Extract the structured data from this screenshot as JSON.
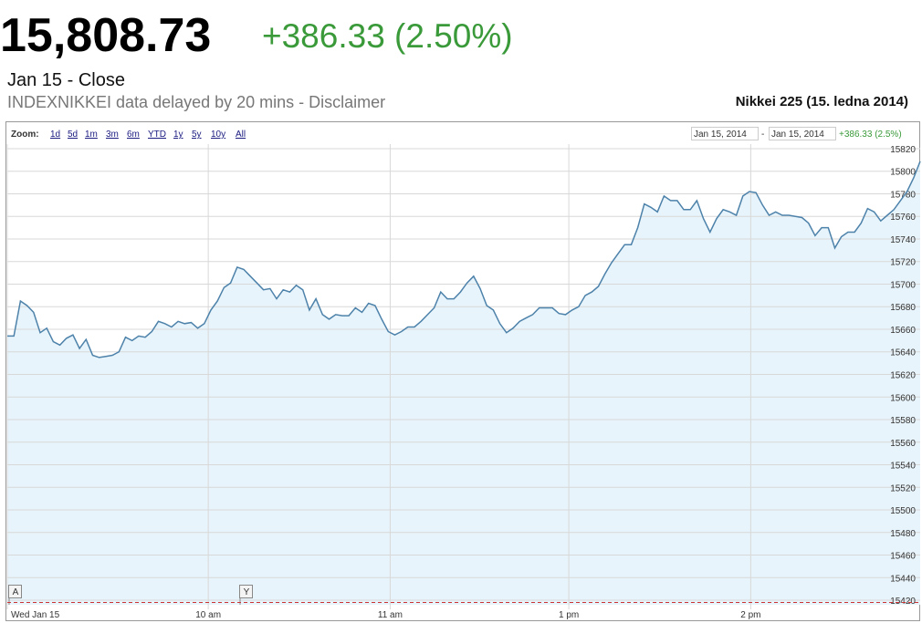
{
  "header": {
    "price": "15,808.73",
    "change": "+386.33 (2.50%)",
    "date": "Jan 15 - Close",
    "note": "INDEXNIKKEI data delayed by 20 mins - Disclaimer",
    "chart_title": "Nikkei 225 (15. ledna 2014)"
  },
  "toolbar": {
    "zoom_label": "Zoom:",
    "zoom_options": [
      "1d",
      "5d",
      "1m",
      "3m",
      "6m",
      "YTD",
      "1y",
      "5y",
      "10y",
      "All"
    ],
    "range_from": "Jan 15, 2014",
    "range_sep": "-",
    "range_to": "Jan 15, 2014",
    "range_change": "+386.33 (2.5%)"
  },
  "chart_data": {
    "type": "line",
    "color": "#4d82aa",
    "fill": "#e8f4fb",
    "values": [
      15654,
      15654,
      15685,
      15681,
      15675,
      15657,
      15661,
      15649,
      15646,
      15652,
      15655,
      15643,
      15651,
      15637,
      15635,
      15636,
      15637,
      15640,
      15653,
      15650,
      15654,
      15653,
      15658,
      15667,
      15665,
      15662,
      15667,
      15665,
      15666,
      15661,
      15665,
      15677,
      15685,
      15697,
      15701,
      15715,
      15713,
      15707,
      15701,
      15695,
      15696,
      15687,
      15695,
      15693,
      15699,
      15695,
      15677,
      15687,
      15673,
      15669,
      15673,
      15672,
      15672,
      15679,
      15675,
      15683,
      15681,
      15669,
      15658,
      15655,
      15658,
      15662,
      15662,
      15667,
      15673,
      15679,
      15693,
      15687,
      15687,
      15693,
      15701,
      15707,
      15696,
      15681,
      15677,
      15665,
      15657,
      15661,
      15667,
      15670,
      15673,
      15679,
      15679,
      15679,
      15674,
      15673,
      15677,
      15680,
      15690,
      15693,
      15698,
      15709,
      15719,
      15727,
      15735,
      15735,
      15750,
      15771,
      15768,
      15764,
      15778,
      15774,
      15774,
      15766,
      15766,
      15774,
      15758,
      15746,
      15758,
      15766,
      15764,
      15761,
      15778,
      15782,
      15781,
      15770,
      15761,
      15764,
      15761,
      15761,
      15760,
      15759,
      15754,
      15743,
      15750,
      15750,
      15732,
      15742,
      15746,
      15746,
      15754,
      15767,
      15764,
      15756,
      15761,
      15766,
      15774,
      15782,
      15794,
      15808.73
    ],
    "xlim": [
      0,
      139
    ],
    "xticks": [
      {
        "value": 0,
        "label": "Wed Jan 15"
      },
      {
        "value": 30.6,
        "label": "10 am"
      },
      {
        "value": 58.3,
        "label": "11 am"
      },
      {
        "value": 85.5,
        "label": "1 pm"
      },
      {
        "value": 113.2,
        "label": "2 pm"
      }
    ],
    "ylim": [
      15416,
      15824
    ],
    "yticks": [
      15420,
      15440,
      15460,
      15480,
      15500,
      15520,
      15540,
      15560,
      15580,
      15600,
      15620,
      15640,
      15660,
      15680,
      15700,
      15720,
      15740,
      15760,
      15780,
      15800,
      15820
    ],
    "grid": true,
    "annotations": [
      "A",
      "Y"
    ]
  }
}
